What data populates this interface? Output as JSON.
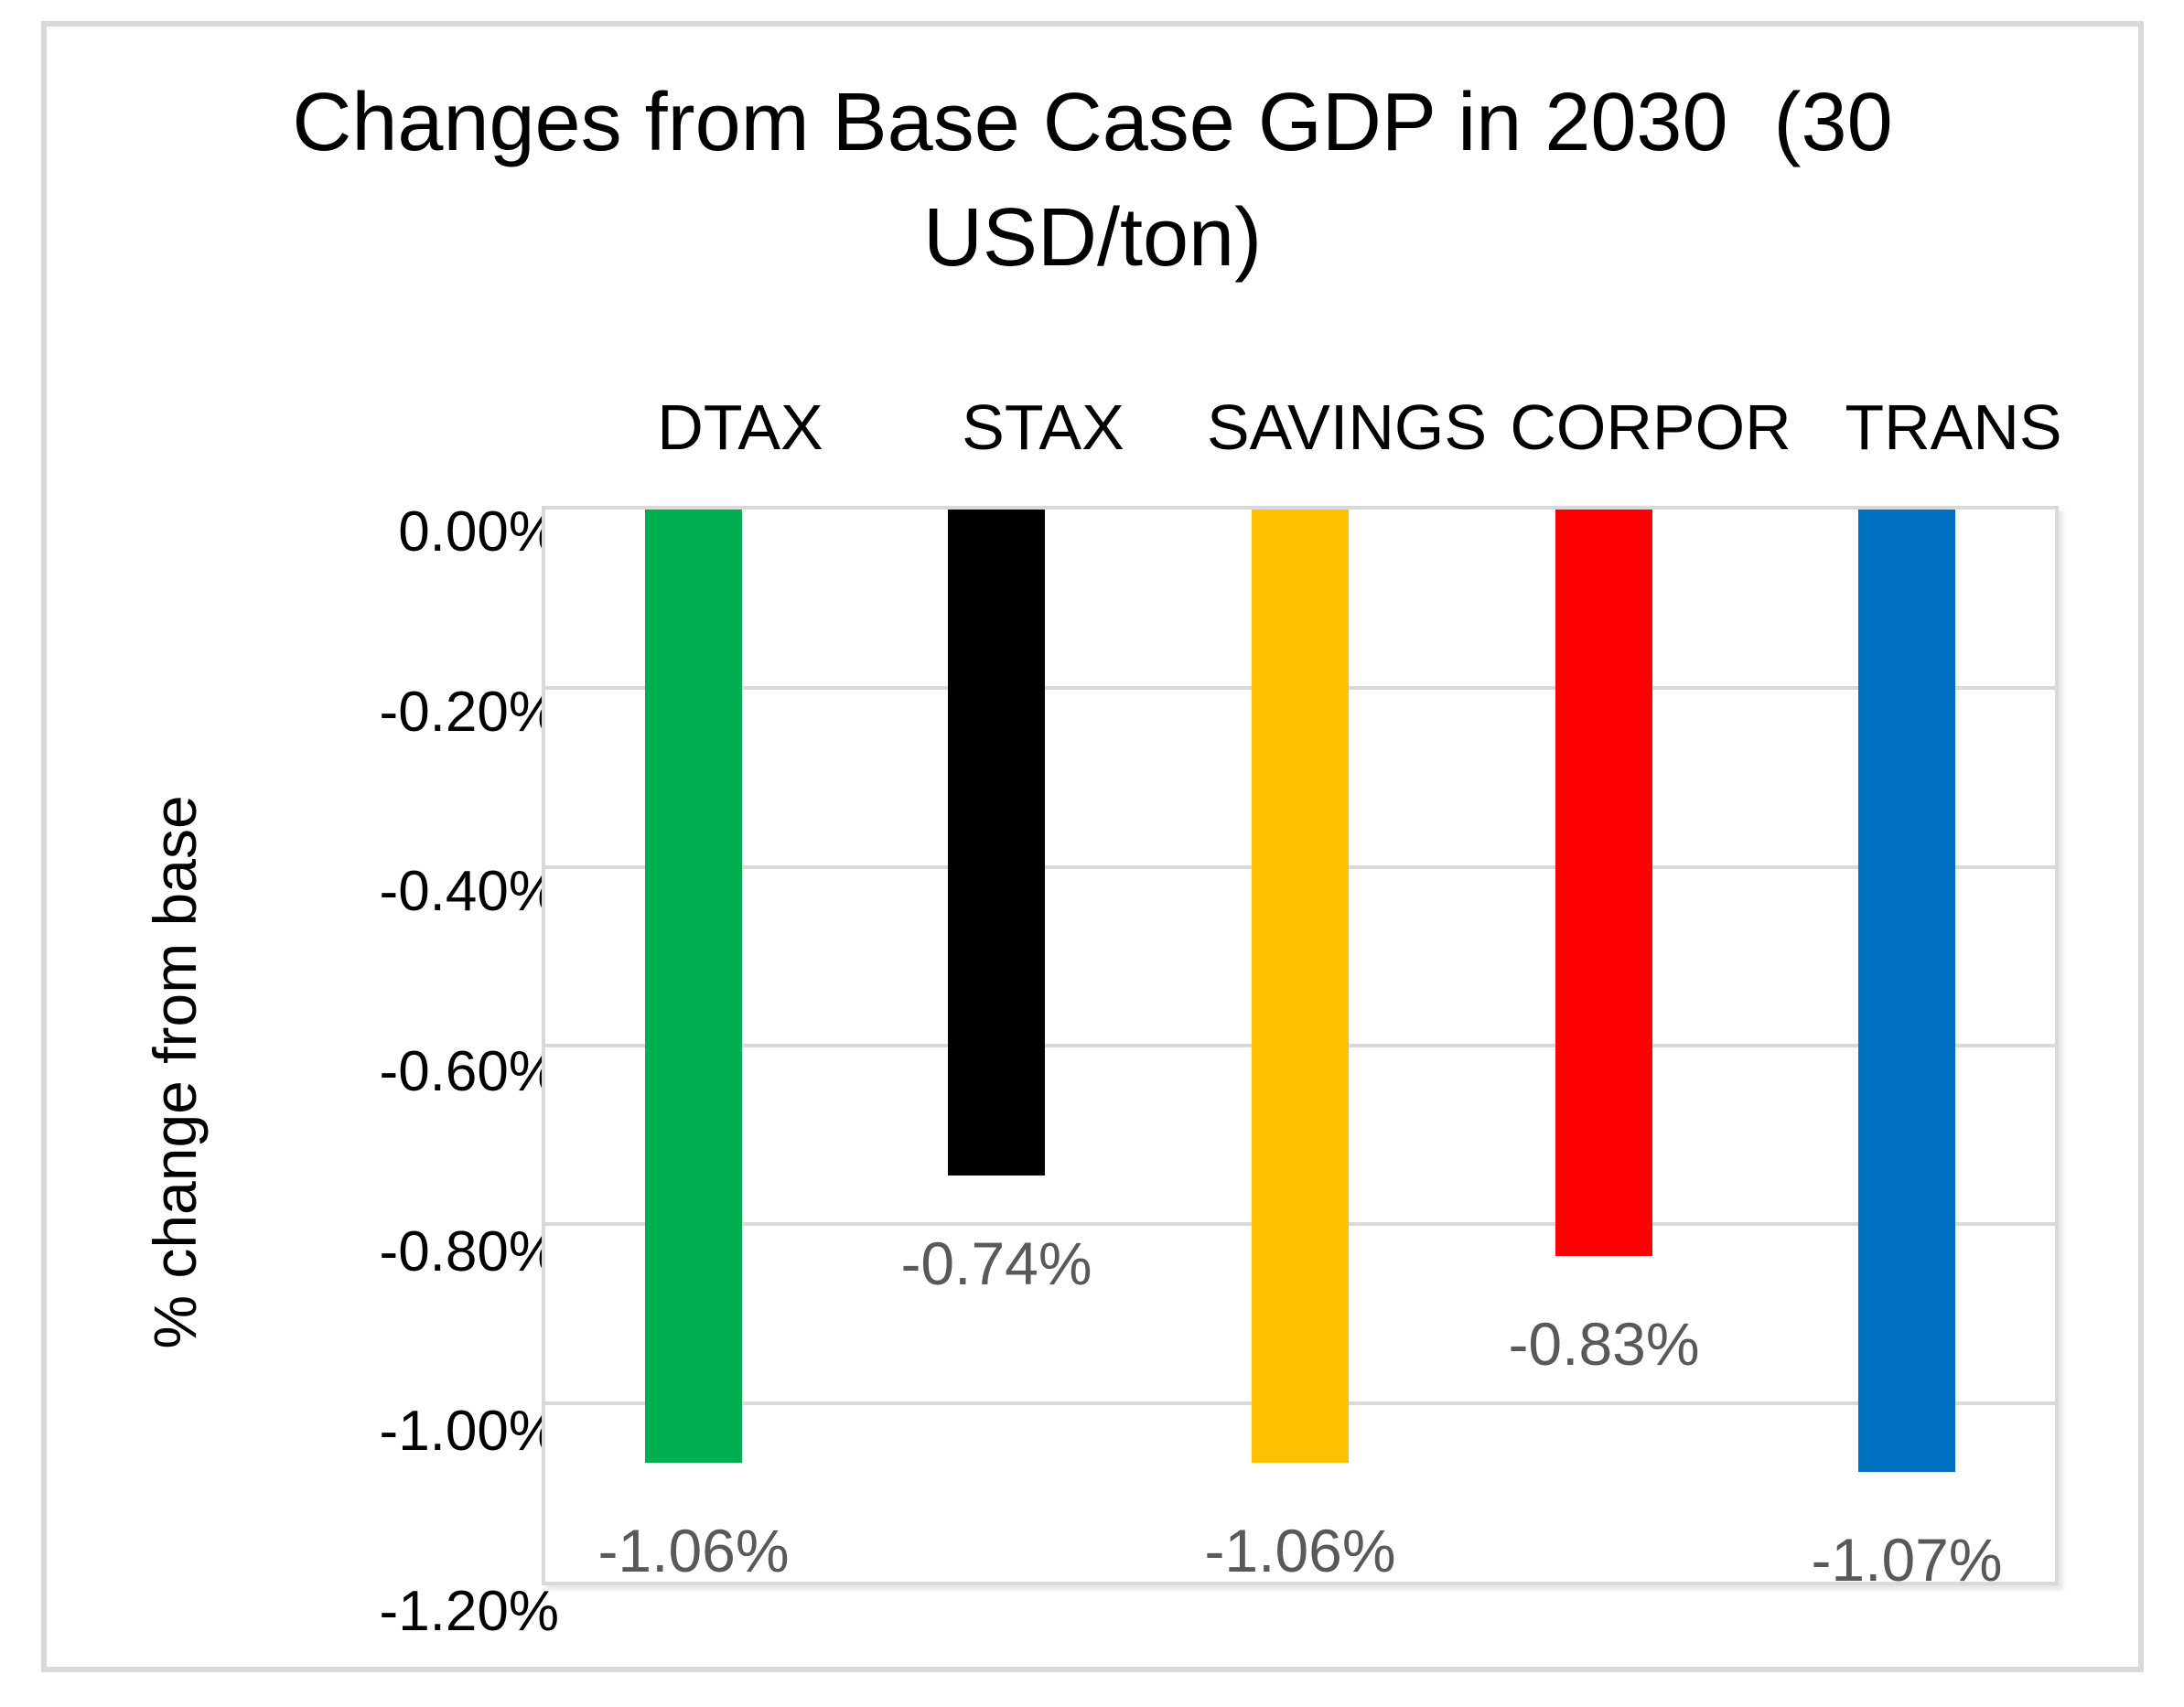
{
  "chart_data": {
    "type": "bar",
    "title": "Changes from Base Case GDP in 2030  (30 USD/ton)",
    "title_lines": [
      "Changes from Base Case GDP in 2030  (30",
      "USD/ton)"
    ],
    "ylabel": "% change from base",
    "xlabel": "",
    "categories": [
      "DTAX",
      "STAX",
      "SAVINGS",
      "CORPOR",
      "TRANS"
    ],
    "values": [
      -1.06,
      -0.74,
      -1.06,
      -0.83,
      -1.07
    ],
    "value_labels": [
      "-1.06%",
      "-0.74%",
      "-1.06%",
      "-0.83%",
      "-1.07%"
    ],
    "bar_colors": [
      "#00B050",
      "#000000",
      "#FFC000",
      "#FF0000",
      "#0070C0"
    ],
    "ylim": [
      0,
      -1.2
    ],
    "yticks": [
      "0.00%",
      "-0.20%",
      "-0.40%",
      "-0.60%",
      "-0.80%",
      "-1.00%",
      "-1.20%"
    ],
    "ytick_values": [
      0,
      -0.2,
      -0.4,
      -0.6,
      -0.8,
      -1.0,
      -1.2
    ],
    "grid": "horizontal",
    "legend": "none",
    "data_label_position": "outside-end",
    "colors": {
      "gridline": "#D9D9D9",
      "chart_border": "#D9D9D9",
      "data_label_text": "#595959",
      "axis_text": "#000000",
      "background": "#FFFFFF"
    }
  }
}
